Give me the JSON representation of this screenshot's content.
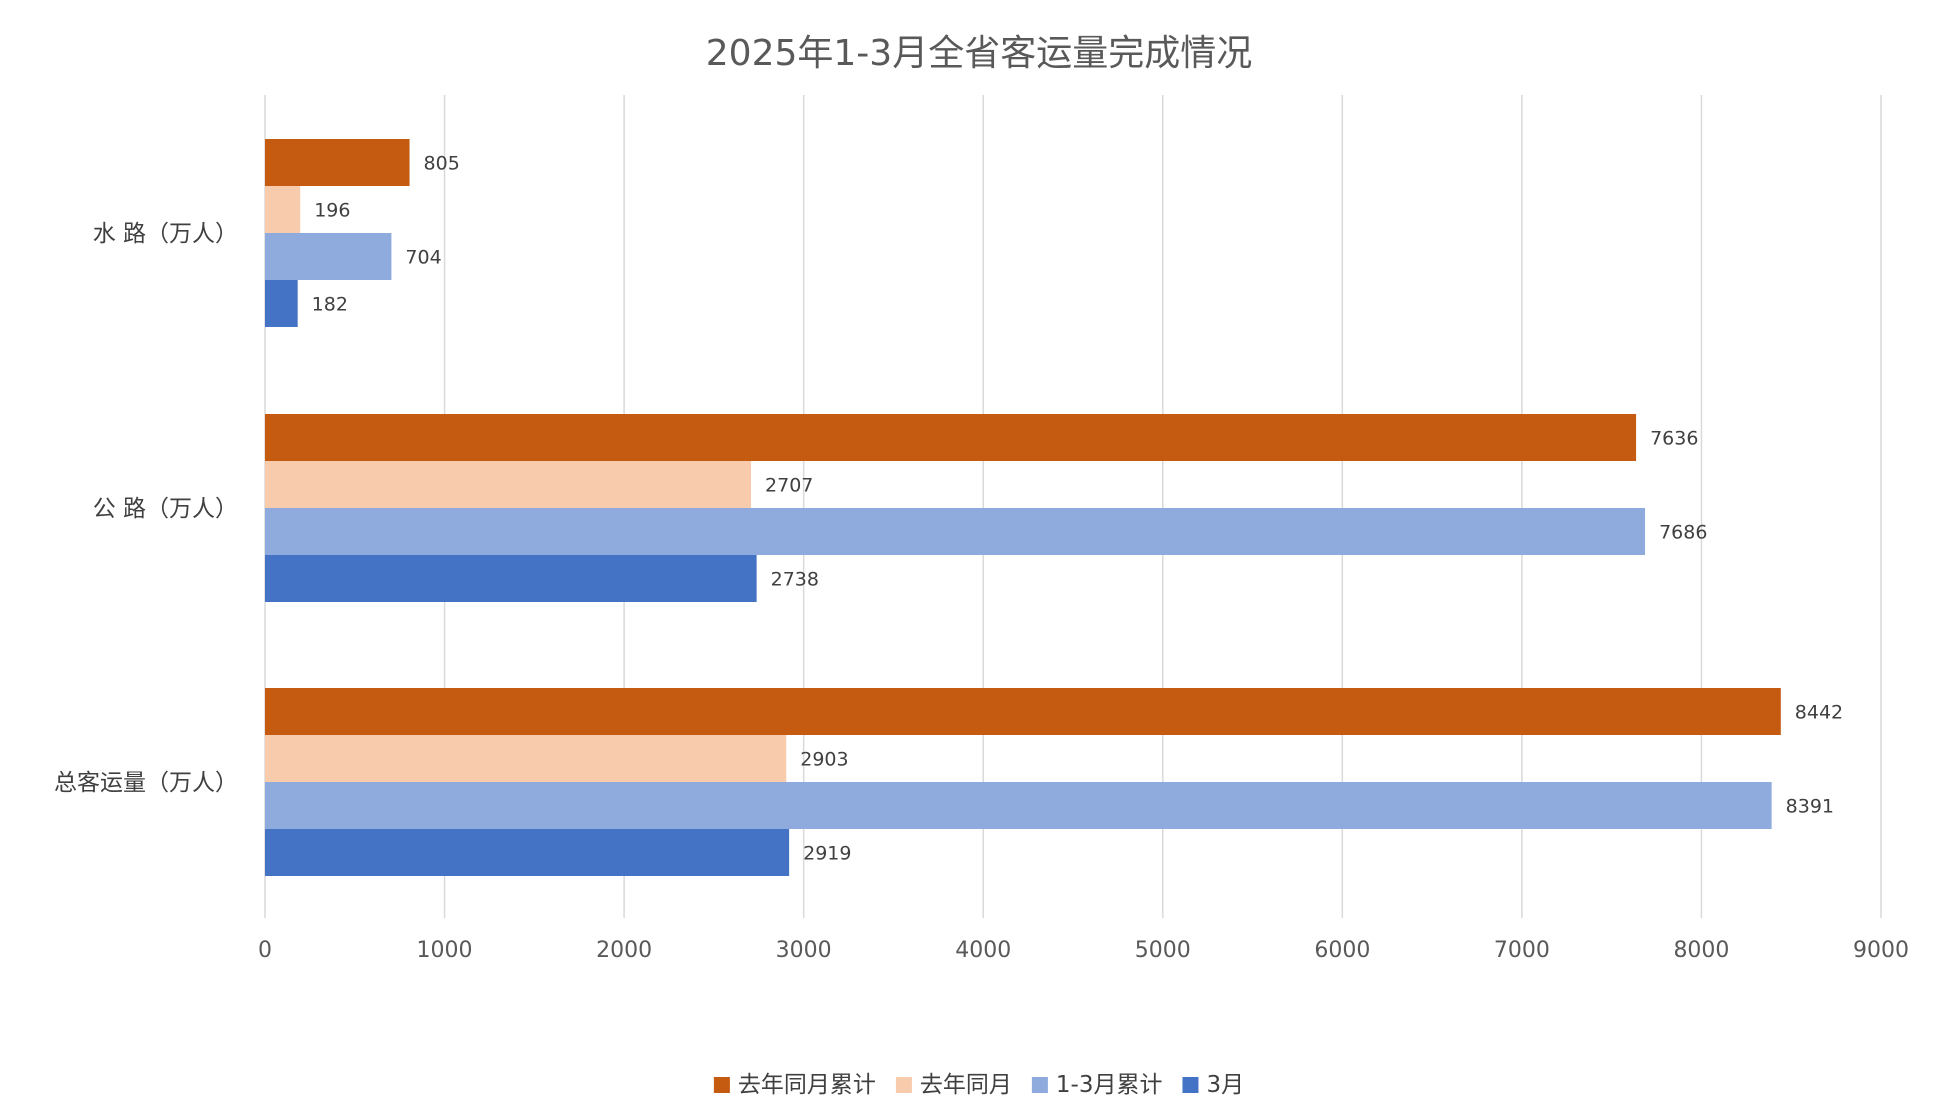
{
  "chart_data": {
    "type": "bar",
    "orientation": "horizontal",
    "title": "2025年1-3月全省客运量完成情况",
    "xlabel": "",
    "ylabel": "",
    "xlim": [
      0,
      9000
    ],
    "x_ticks": [
      "0",
      "1000",
      "2000",
      "3000",
      "4000",
      "5000",
      "6000",
      "7000",
      "8000",
      "9000"
    ],
    "categories": [
      "水 路（万人）",
      "公 路（万人）",
      "总客运量（万人）"
    ],
    "series": [
      {
        "name": "去年同月累计",
        "color": "#C55A11",
        "values": [
          805,
          7636,
          8442
        ]
      },
      {
        "name": "去年同月",
        "color": "#F8CBAD",
        "values": [
          196,
          2707,
          2903
        ]
      },
      {
        "name": "1-3月累计",
        "color": "#8FAADC",
        "values": [
          704,
          7686,
          8391
        ]
      },
      {
        "name": "3月",
        "color": "#4472C4",
        "values": [
          182,
          2738,
          2919
        ]
      }
    ],
    "grid": true,
    "legend_position": "bottom",
    "data_labels": true
  }
}
